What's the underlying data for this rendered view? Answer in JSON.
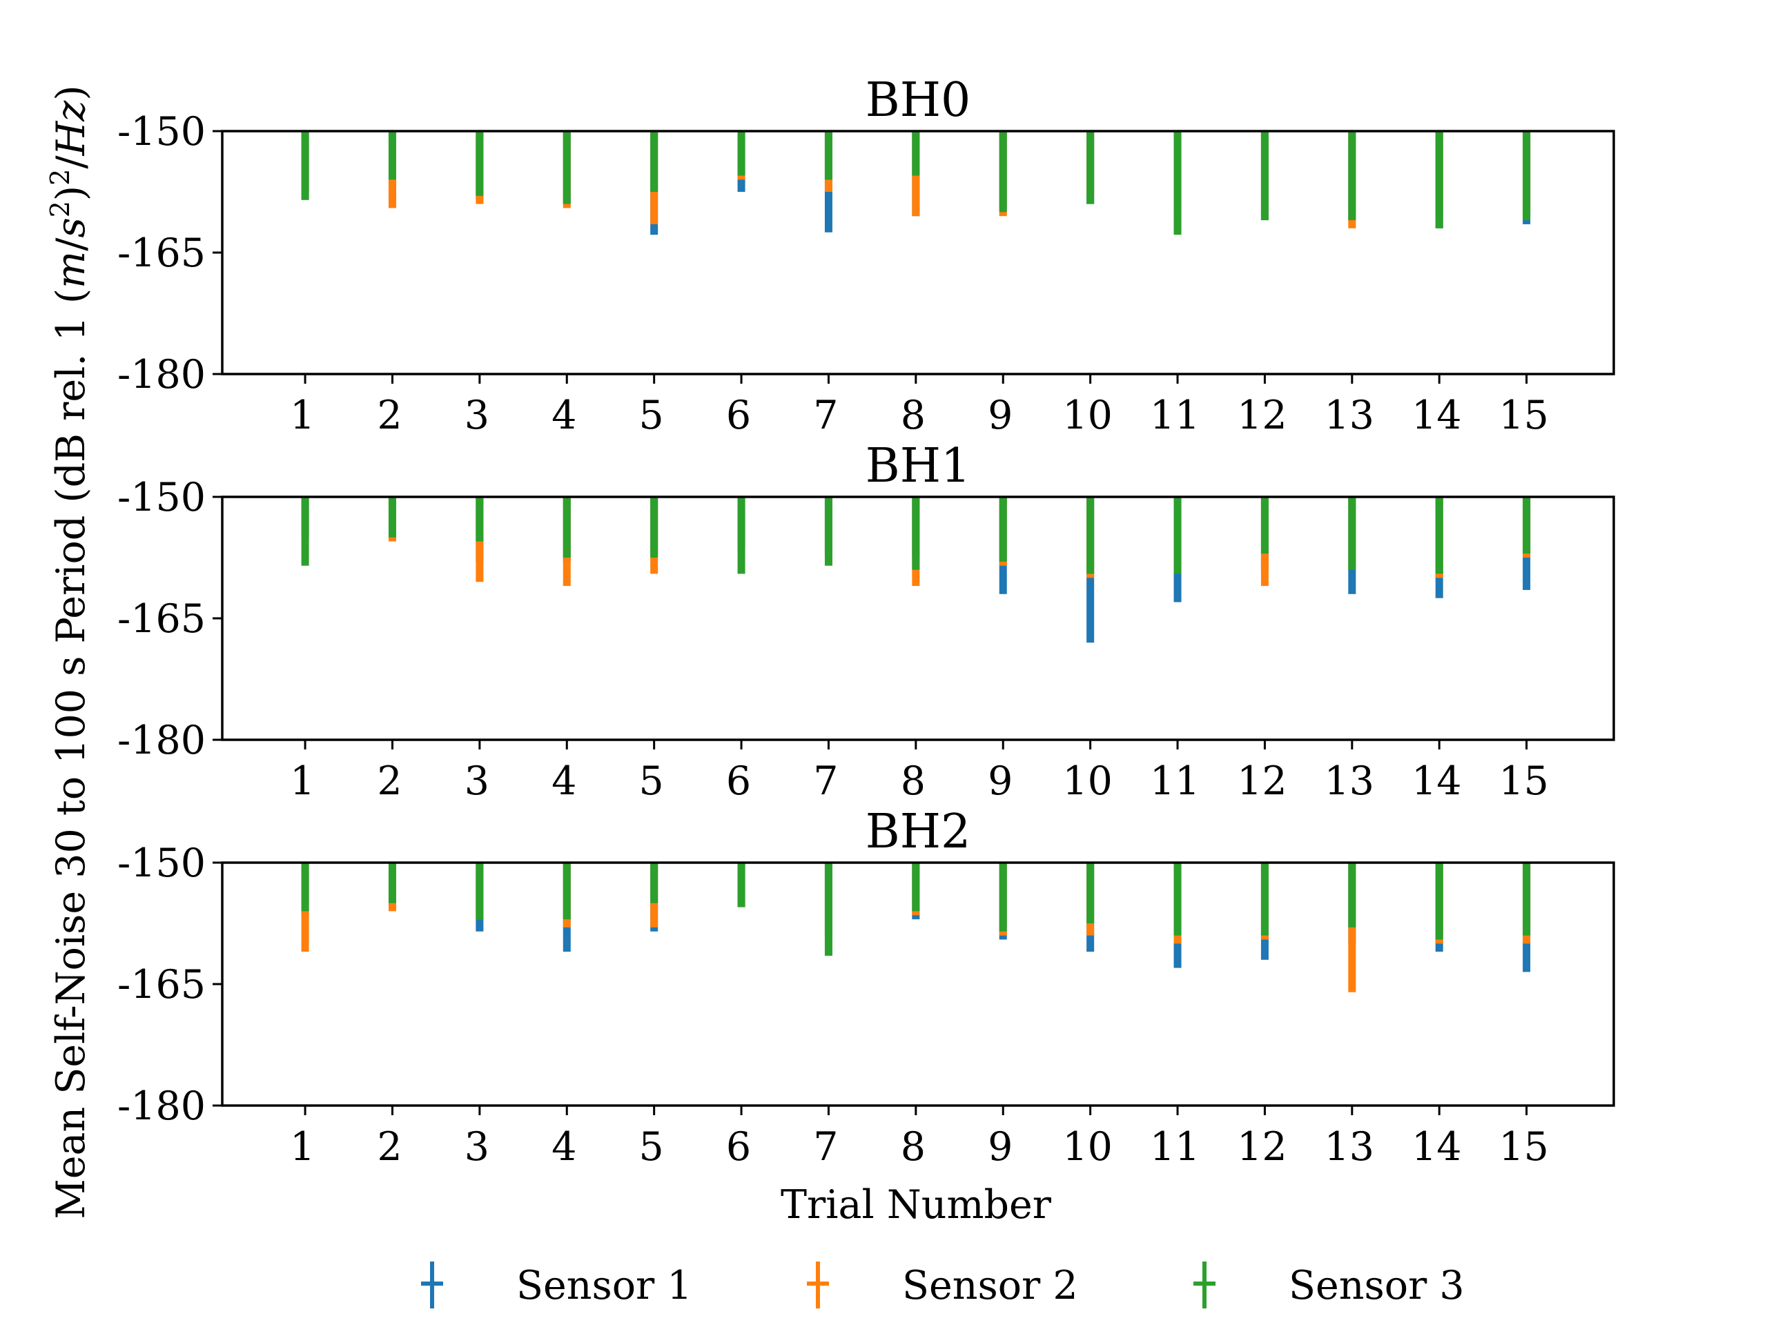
{
  "legend": {
    "placement": "bottom-center",
    "entries": [
      {
        "name": "Sensor 1",
        "color": "#1f77b4"
      },
      {
        "name": "Sensor 2",
        "color": "#ff7f0e"
      },
      {
        "name": "Sensor 3",
        "color": "#2ca02c"
      }
    ]
  },
  "ylabel_text": "Mean Self-Noise 30 to 100 s Period (dB rel. 1 ",
  "ylabel_math": {
    "open": "(",
    "m": "m",
    "slash1": "/",
    "s": "s",
    "sup1": "2",
    "close": ")",
    "sup2": "2",
    "slash2": "/",
    "Hz": "Hz",
    "end": ")"
  },
  "xlabel": "Trial Number",
  "chart_data": [
    {
      "type": "bar",
      "title": "BH0",
      "ylim": [
        -180,
        -150
      ],
      "yticks": [
        "-150",
        "-165",
        "-180"
      ],
      "ytick_values": [
        -150,
        -165,
        -180
      ],
      "x": [
        1,
        2,
        3,
        4,
        5,
        6,
        7,
        8,
        9,
        10,
        11,
        12,
        13,
        14,
        15
      ],
      "xtick_labels": [
        "1",
        "2",
        "3",
        "4",
        "5",
        "6",
        "7",
        "8",
        "9",
        "10",
        "11",
        "12",
        "13",
        "14",
        "15"
      ],
      "grid": false,
      "series": [
        {
          "name": "Sensor 1",
          "values": [
            -158.0,
            -158.5,
            -158.5,
            -159.0,
            -162.8,
            -157.5,
            -162.5,
            -160.5,
            -159.5,
            -159.0,
            -162.5,
            -161.0,
            -161.0,
            -162.0,
            -161.5
          ]
        },
        {
          "name": "Sensor 2",
          "values": [
            -158.5,
            -159.5,
            -159.0,
            -159.5,
            -161.5,
            -156.0,
            -157.5,
            -160.5,
            -160.5,
            -158.0,
            -160.0,
            -160.5,
            -162.0,
            -160.5,
            -160.0
          ]
        },
        {
          "name": "Sensor 3",
          "values": [
            -158.5,
            -156.0,
            -158.0,
            -159.0,
            -157.5,
            -155.5,
            -156.0,
            -155.5,
            -160.0,
            -159.0,
            -162.8,
            -161.0,
            -161.0,
            -162.0,
            -161.0
          ]
        }
      ]
    },
    {
      "type": "bar",
      "title": "BH1",
      "ylim": [
        -180,
        -150
      ],
      "yticks": [
        "-150",
        "-165",
        "-180"
      ],
      "ytick_values": [
        -150,
        -165,
        -180
      ],
      "x": [
        1,
        2,
        3,
        4,
        5,
        6,
        7,
        8,
        9,
        10,
        11,
        12,
        13,
        14,
        15
      ],
      "xtick_labels": [
        "1",
        "2",
        "3",
        "4",
        "5",
        "6",
        "7",
        "8",
        "9",
        "10",
        "11",
        "12",
        "13",
        "14",
        "15"
      ],
      "grid": false,
      "series": [
        {
          "name": "Sensor 1",
          "values": [
            -155.0,
            -154.0,
            -158.0,
            -158.0,
            -157.0,
            -156.0,
            -157.0,
            -157.5,
            -162.0,
            -168.0,
            -163.0,
            -159.0,
            -162.0,
            -162.5,
            -161.5
          ]
        },
        {
          "name": "Sensor 2",
          "values": [
            -155.0,
            -155.5,
            -160.5,
            -161.0,
            -159.5,
            -156.5,
            -157.0,
            -161.0,
            -158.5,
            -160.0,
            -159.0,
            -161.0,
            -159.0,
            -160.0,
            -157.5
          ]
        },
        {
          "name": "Sensor 3",
          "values": [
            -158.5,
            -155.0,
            -155.5,
            -157.5,
            -157.5,
            -159.5,
            -158.5,
            -159.0,
            -158.0,
            -159.5,
            -159.5,
            -157.0,
            -159.0,
            -159.5,
            -157.0
          ]
        }
      ]
    },
    {
      "type": "bar",
      "title": "BH2",
      "ylim": [
        -180,
        -150
      ],
      "yticks": [
        "-150",
        "-165",
        "-180"
      ],
      "ytick_values": [
        -150,
        -165,
        -180
      ],
      "x": [
        1,
        2,
        3,
        4,
        5,
        6,
        7,
        8,
        9,
        10,
        11,
        12,
        13,
        14,
        15
      ],
      "xtick_labels": [
        "1",
        "2",
        "3",
        "4",
        "5",
        "6",
        "7",
        "8",
        "9",
        "10",
        "11",
        "12",
        "13",
        "14",
        "15"
      ],
      "grid": false,
      "series": [
        {
          "name": "Sensor 1",
          "values": [
            -156.5,
            -155.0,
            -158.5,
            -161.0,
            -158.5,
            -155.5,
            -159.0,
            -157.0,
            -159.5,
            -161.0,
            -163.0,
            -162.0,
            -160.0,
            -161.0,
            -163.5
          ]
        },
        {
          "name": "Sensor 2",
          "values": [
            -161.0,
            -156.0,
            -157.0,
            -158.0,
            -158.0,
            -155.5,
            -159.5,
            -156.5,
            -159.0,
            -159.0,
            -160.0,
            -159.5,
            -166.0,
            -160.0,
            -160.0
          ]
        },
        {
          "name": "Sensor 3",
          "values": [
            -156.0,
            -155.0,
            -157.0,
            -157.0,
            -155.0,
            -155.5,
            -161.5,
            -156.0,
            -158.5,
            -157.5,
            -159.0,
            -159.0,
            -158.0,
            -159.5,
            -159.0
          ]
        }
      ]
    }
  ]
}
